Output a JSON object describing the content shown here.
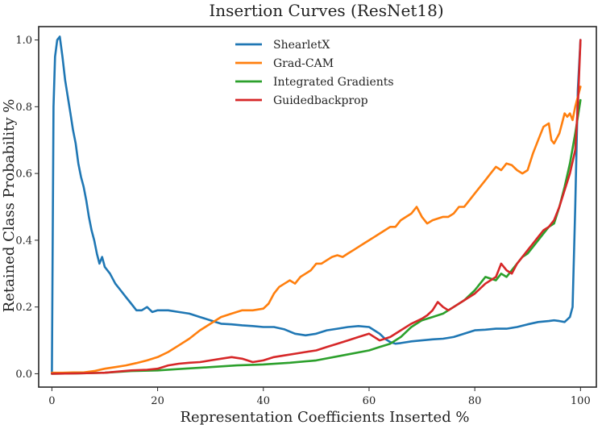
{
  "chart_data": {
    "type": "line",
    "title": "Insertion Curves (ResNet18)",
    "xlabel": "Representation Coefficients Inserted %",
    "ylabel": "Retained Class Probability %",
    "xlim": [
      -2.5,
      103
    ],
    "ylim": [
      -0.04,
      1.04
    ],
    "xticks": [
      0,
      20,
      40,
      60,
      80,
      100
    ],
    "xtick_labels": [
      "0",
      "20",
      "40",
      "60",
      "80",
      "100"
    ],
    "yticks": [
      0.0,
      0.2,
      0.4,
      0.6,
      0.8,
      1.0
    ],
    "ytick_labels": [
      "0.0",
      "0.2",
      "0.4",
      "0.6",
      "0.8",
      "1.0"
    ],
    "grid": false,
    "legend_position": "top-center",
    "series": [
      {
        "name": "ShearletX",
        "color": "#1f77b4",
        "points": [
          [
            0,
            0.0
          ],
          [
            0.3,
            0.8
          ],
          [
            0.6,
            0.95
          ],
          [
            1,
            1.0
          ],
          [
            1.5,
            1.01
          ],
          [
            2,
            0.95
          ],
          [
            2.5,
            0.88
          ],
          [
            3,
            0.83
          ],
          [
            3.5,
            0.78
          ],
          [
            4,
            0.73
          ],
          [
            4.5,
            0.69
          ],
          [
            5,
            0.63
          ],
          [
            5.5,
            0.59
          ],
          [
            6,
            0.56
          ],
          [
            6.5,
            0.52
          ],
          [
            7,
            0.47
          ],
          [
            7.5,
            0.43
          ],
          [
            8,
            0.4
          ],
          [
            8.5,
            0.36
          ],
          [
            9,
            0.33
          ],
          [
            9.5,
            0.35
          ],
          [
            10,
            0.32
          ],
          [
            11,
            0.3
          ],
          [
            12,
            0.27
          ],
          [
            13,
            0.25
          ],
          [
            14,
            0.23
          ],
          [
            15,
            0.21
          ],
          [
            16,
            0.19
          ],
          [
            17,
            0.19
          ],
          [
            18,
            0.2
          ],
          [
            19,
            0.185
          ],
          [
            20,
            0.19
          ],
          [
            22,
            0.19
          ],
          [
            24,
            0.185
          ],
          [
            26,
            0.18
          ],
          [
            28,
            0.17
          ],
          [
            30,
            0.16
          ],
          [
            32,
            0.15
          ],
          [
            34,
            0.148
          ],
          [
            36,
            0.145
          ],
          [
            38,
            0.143
          ],
          [
            40,
            0.14
          ],
          [
            42,
            0.14
          ],
          [
            44,
            0.133
          ],
          [
            46,
            0.12
          ],
          [
            48,
            0.115
          ],
          [
            50,
            0.12
          ],
          [
            52,
            0.13
          ],
          [
            54,
            0.135
          ],
          [
            56,
            0.14
          ],
          [
            58,
            0.143
          ],
          [
            60,
            0.14
          ],
          [
            61,
            0.13
          ],
          [
            62,
            0.12
          ],
          [
            63,
            0.105
          ],
          [
            64,
            0.095
          ],
          [
            65,
            0.09
          ],
          [
            66,
            0.092
          ],
          [
            68,
            0.097
          ],
          [
            70,
            0.1
          ],
          [
            72,
            0.103
          ],
          [
            74,
            0.105
          ],
          [
            76,
            0.11
          ],
          [
            78,
            0.12
          ],
          [
            80,
            0.13
          ],
          [
            82,
            0.132
          ],
          [
            84,
            0.135
          ],
          [
            86,
            0.135
          ],
          [
            88,
            0.14
          ],
          [
            90,
            0.148
          ],
          [
            92,
            0.155
          ],
          [
            94,
            0.158
          ],
          [
            95,
            0.16
          ],
          [
            96,
            0.158
          ],
          [
            97,
            0.155
          ],
          [
            98,
            0.17
          ],
          [
            98.5,
            0.2
          ],
          [
            99,
            0.5
          ],
          [
            99.5,
            0.85
          ],
          [
            100,
            1.0
          ]
        ]
      },
      {
        "name": "Grad-CAM",
        "color": "#ff7f0e",
        "points": [
          [
            0,
            0.003
          ],
          [
            2,
            0.003
          ],
          [
            4,
            0.004
          ],
          [
            6,
            0.004
          ],
          [
            8,
            0.008
          ],
          [
            10,
            0.015
          ],
          [
            12,
            0.02
          ],
          [
            14,
            0.025
          ],
          [
            16,
            0.032
          ],
          [
            18,
            0.04
          ],
          [
            20,
            0.05
          ],
          [
            22,
            0.065
          ],
          [
            24,
            0.085
          ],
          [
            26,
            0.105
          ],
          [
            28,
            0.13
          ],
          [
            30,
            0.15
          ],
          [
            32,
            0.17
          ],
          [
            34,
            0.18
          ],
          [
            36,
            0.19
          ],
          [
            38,
            0.19
          ],
          [
            40,
            0.195
          ],
          [
            41,
            0.21
          ],
          [
            42,
            0.24
          ],
          [
            43,
            0.26
          ],
          [
            44,
            0.27
          ],
          [
            45,
            0.28
          ],
          [
            46,
            0.27
          ],
          [
            47,
            0.29
          ],
          [
            48,
            0.3
          ],
          [
            49,
            0.31
          ],
          [
            50,
            0.33
          ],
          [
            51,
            0.33
          ],
          [
            52,
            0.34
          ],
          [
            53,
            0.35
          ],
          [
            54,
            0.355
          ],
          [
            55,
            0.35
          ],
          [
            56,
            0.36
          ],
          [
            57,
            0.37
          ],
          [
            58,
            0.38
          ],
          [
            59,
            0.39
          ],
          [
            60,
            0.4
          ],
          [
            61,
            0.41
          ],
          [
            62,
            0.42
          ],
          [
            63,
            0.43
          ],
          [
            64,
            0.44
          ],
          [
            65,
            0.44
          ],
          [
            66,
            0.46
          ],
          [
            67,
            0.47
          ],
          [
            68,
            0.48
          ],
          [
            69,
            0.5
          ],
          [
            70,
            0.47
          ],
          [
            71,
            0.45
          ],
          [
            72,
            0.46
          ],
          [
            73,
            0.465
          ],
          [
            74,
            0.47
          ],
          [
            75,
            0.47
          ],
          [
            76,
            0.48
          ],
          [
            77,
            0.5
          ],
          [
            78,
            0.5
          ],
          [
            79,
            0.52
          ],
          [
            80,
            0.54
          ],
          [
            81,
            0.56
          ],
          [
            82,
            0.58
          ],
          [
            83,
            0.6
          ],
          [
            84,
            0.62
          ],
          [
            85,
            0.61
          ],
          [
            86,
            0.63
          ],
          [
            87,
            0.625
          ],
          [
            88,
            0.61
          ],
          [
            89,
            0.6
          ],
          [
            90,
            0.61
          ],
          [
            91,
            0.66
          ],
          [
            92,
            0.7
          ],
          [
            93,
            0.74
          ],
          [
            94,
            0.75
          ],
          [
            94.5,
            0.7
          ],
          [
            95,
            0.69
          ],
          [
            96,
            0.72
          ],
          [
            96.5,
            0.75
          ],
          [
            97,
            0.78
          ],
          [
            97.5,
            0.77
          ],
          [
            98,
            0.78
          ],
          [
            98.5,
            0.76
          ],
          [
            99,
            0.8
          ],
          [
            100,
            0.86
          ]
        ]
      },
      {
        "name": "Integrated Gradients",
        "color": "#2ca02c",
        "points": [
          [
            0,
            0.0
          ],
          [
            5,
            0.001
          ],
          [
            10,
            0.003
          ],
          [
            15,
            0.008
          ],
          [
            20,
            0.01
          ],
          [
            25,
            0.015
          ],
          [
            30,
            0.02
          ],
          [
            35,
            0.025
          ],
          [
            40,
            0.028
          ],
          [
            45,
            0.033
          ],
          [
            50,
            0.04
          ],
          [
            55,
            0.055
          ],
          [
            60,
            0.07
          ],
          [
            62,
            0.08
          ],
          [
            64,
            0.09
          ],
          [
            66,
            0.11
          ],
          [
            68,
            0.14
          ],
          [
            70,
            0.16
          ],
          [
            72,
            0.17
          ],
          [
            74,
            0.18
          ],
          [
            76,
            0.2
          ],
          [
            78,
            0.22
          ],
          [
            80,
            0.25
          ],
          [
            81,
            0.27
          ],
          [
            82,
            0.29
          ],
          [
            83,
            0.285
          ],
          [
            84,
            0.28
          ],
          [
            85,
            0.3
          ],
          [
            86,
            0.29
          ],
          [
            87,
            0.31
          ],
          [
            88,
            0.33
          ],
          [
            89,
            0.35
          ],
          [
            90,
            0.36
          ],
          [
            91,
            0.38
          ],
          [
            92,
            0.4
          ],
          [
            93,
            0.42
          ],
          [
            94,
            0.44
          ],
          [
            95,
            0.45
          ],
          [
            96,
            0.5
          ],
          [
            97,
            0.56
          ],
          [
            98,
            0.63
          ],
          [
            99,
            0.72
          ],
          [
            100,
            0.82
          ]
        ]
      },
      {
        "name": "Guidedbackprop",
        "color": "#d62728",
        "points": [
          [
            0,
            0.0
          ],
          [
            5,
            0.001
          ],
          [
            10,
            0.003
          ],
          [
            15,
            0.01
          ],
          [
            18,
            0.012
          ],
          [
            20,
            0.015
          ],
          [
            22,
            0.025
          ],
          [
            24,
            0.03
          ],
          [
            26,
            0.033
          ],
          [
            28,
            0.035
          ],
          [
            30,
            0.04
          ],
          [
            32,
            0.045
          ],
          [
            34,
            0.05
          ],
          [
            36,
            0.045
          ],
          [
            38,
            0.035
          ],
          [
            40,
            0.04
          ],
          [
            42,
            0.05
          ],
          [
            44,
            0.055
          ],
          [
            46,
            0.06
          ],
          [
            48,
            0.065
          ],
          [
            50,
            0.07
          ],
          [
            52,
            0.08
          ],
          [
            54,
            0.09
          ],
          [
            56,
            0.1
          ],
          [
            58,
            0.11
          ],
          [
            60,
            0.12
          ],
          [
            62,
            0.1
          ],
          [
            64,
            0.11
          ],
          [
            66,
            0.13
          ],
          [
            68,
            0.15
          ],
          [
            70,
            0.165
          ],
          [
            71,
            0.175
          ],
          [
            72,
            0.19
          ],
          [
            73,
            0.215
          ],
          [
            74,
            0.2
          ],
          [
            75,
            0.19
          ],
          [
            76,
            0.2
          ],
          [
            78,
            0.22
          ],
          [
            80,
            0.24
          ],
          [
            82,
            0.27
          ],
          [
            84,
            0.29
          ],
          [
            85,
            0.33
          ],
          [
            86,
            0.31
          ],
          [
            87,
            0.3
          ],
          [
            88,
            0.33
          ],
          [
            89,
            0.35
          ],
          [
            90,
            0.37
          ],
          [
            91,
            0.39
          ],
          [
            92,
            0.41
          ],
          [
            93,
            0.43
          ],
          [
            94,
            0.44
          ],
          [
            95,
            0.46
          ],
          [
            96,
            0.5
          ],
          [
            97,
            0.55
          ],
          [
            98,
            0.6
          ],
          [
            99,
            0.67
          ],
          [
            99.5,
            0.8
          ],
          [
            100,
            1.0
          ]
        ]
      }
    ]
  }
}
